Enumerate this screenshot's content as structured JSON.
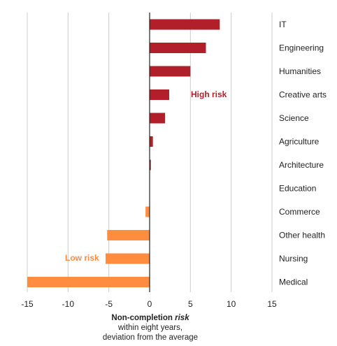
{
  "chart_data": {
    "type": "bar",
    "orientation": "horizontal",
    "categories": [
      "IT",
      "Engineering",
      "Humanities",
      "Creative arts",
      "Science",
      "Agriculture",
      "Architecture",
      "Education",
      "Commerce",
      "Other health",
      "Nursing",
      "Medical"
    ],
    "values": [
      8.6,
      6.9,
      5.0,
      2.4,
      1.9,
      0.4,
      0.15,
      0.0,
      -0.5,
      -5.2,
      -5.4,
      -15.0
    ],
    "xlim": [
      -15,
      15
    ],
    "xticks": [
      -15,
      -10,
      -5,
      0,
      5,
      10,
      15
    ],
    "grid": true,
    "colors": {
      "positive": "#b01f2a",
      "negative": "#ff8c3f"
    },
    "annotations": [
      {
        "text": "High risk",
        "color": "#b01f2a"
      },
      {
        "text": "Low risk",
        "color": "#ff8c3f"
      }
    ],
    "xlabel": {
      "line1_bold": "Non-completion ",
      "line1_bold_italic": "risk",
      "line2": "within eight years,",
      "line3": "deviation from the average"
    }
  }
}
